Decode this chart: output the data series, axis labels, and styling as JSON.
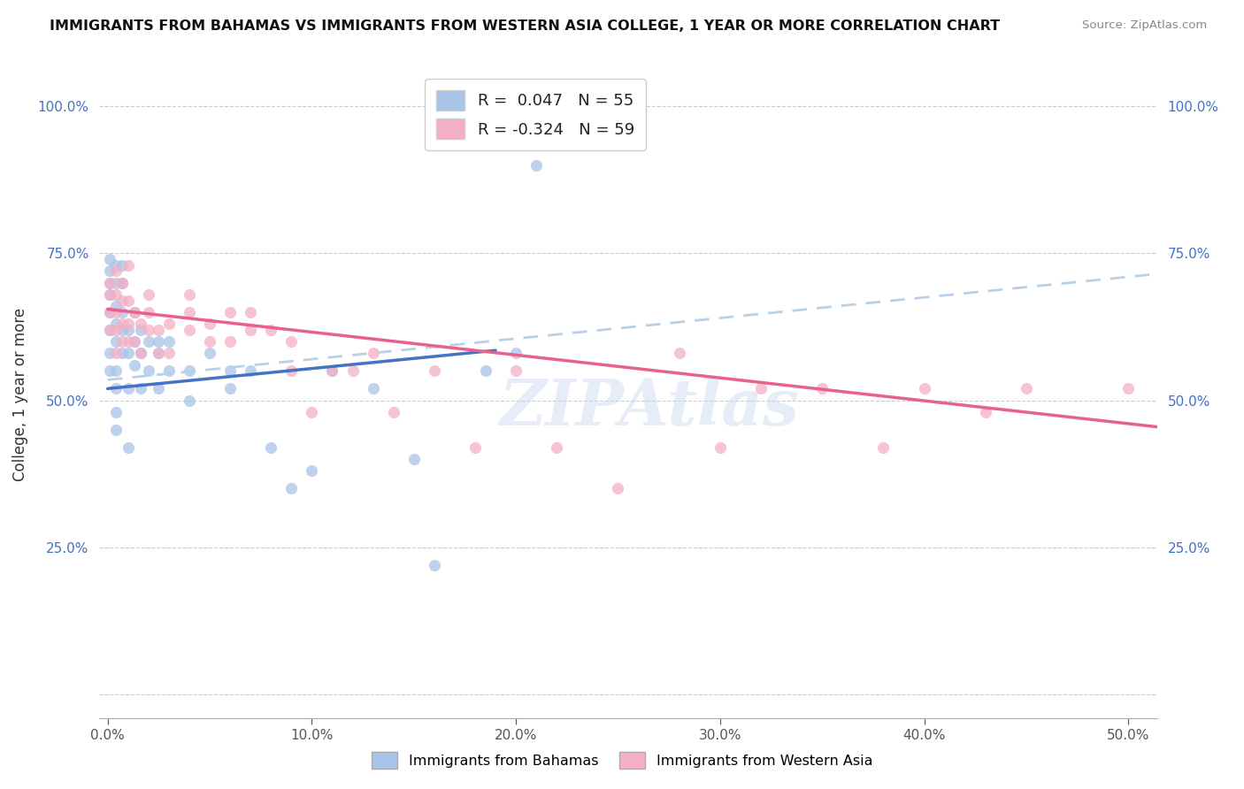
{
  "title": "IMMIGRANTS FROM BAHAMAS VS IMMIGRANTS FROM WESTERN ASIA COLLEGE, 1 YEAR OR MORE CORRELATION CHART",
  "source": "Source: ZipAtlas.com",
  "ylabel": "College, 1 year or more",
  "R_bahamas": 0.047,
  "N_bahamas": 55,
  "R_western_asia": -0.324,
  "N_western_asia": 59,
  "color_bahamas": "#a8c4e8",
  "color_western_asia": "#f4afc4",
  "trendline_bahamas_solid_color": "#4472c4",
  "trendline_bahamas_dashed_color": "#b8d0e8",
  "trendline_western_asia_color": "#e8608c",
  "legend_label_bahamas": "Immigrants from Bahamas",
  "legend_label_western_asia": "Immigrants from Western Asia",
  "watermark": "ZIPAtlas",
  "xlim": [
    -0.004,
    0.514
  ],
  "ylim": [
    -0.04,
    1.06
  ],
  "x_ticks": [
    0.0,
    0.1,
    0.2,
    0.3,
    0.4,
    0.5
  ],
  "y_ticks": [
    0.0,
    0.25,
    0.5,
    0.75,
    1.0
  ],
  "bah_trend_x0": 0.0,
  "bah_trend_y0": 0.52,
  "bah_trend_x1": 0.19,
  "bah_trend_y1": 0.585,
  "dashed_trend_x0": 0.0,
  "dashed_trend_y0": 0.535,
  "dashed_trend_x1": 0.514,
  "dashed_trend_y1": 0.715,
  "wa_trend_x0": 0.0,
  "wa_trend_y0": 0.655,
  "wa_trend_x1": 0.514,
  "wa_trend_y1": 0.455,
  "bah_x": [
    0.001,
    0.001,
    0.001,
    0.001,
    0.001,
    0.001,
    0.001,
    0.001,
    0.004,
    0.004,
    0.004,
    0.004,
    0.004,
    0.004,
    0.004,
    0.004,
    0.004,
    0.007,
    0.007,
    0.007,
    0.007,
    0.007,
    0.01,
    0.01,
    0.01,
    0.01,
    0.013,
    0.013,
    0.013,
    0.016,
    0.016,
    0.016,
    0.02,
    0.02,
    0.025,
    0.025,
    0.025,
    0.03,
    0.03,
    0.04,
    0.04,
    0.05,
    0.06,
    0.06,
    0.07,
    0.08,
    0.09,
    0.1,
    0.11,
    0.13,
    0.15,
    0.16,
    0.185,
    0.2,
    0.21
  ],
  "bah_y": [
    0.62,
    0.65,
    0.68,
    0.7,
    0.72,
    0.74,
    0.58,
    0.55,
    0.52,
    0.55,
    0.6,
    0.63,
    0.66,
    0.7,
    0.73,
    0.48,
    0.45,
    0.58,
    0.62,
    0.65,
    0.7,
    0.73,
    0.52,
    0.58,
    0.62,
    0.42,
    0.56,
    0.6,
    0.65,
    0.52,
    0.58,
    0.62,
    0.55,
    0.6,
    0.52,
    0.58,
    0.6,
    0.55,
    0.6,
    0.5,
    0.55,
    0.58,
    0.55,
    0.52,
    0.55,
    0.42,
    0.35,
    0.38,
    0.55,
    0.52,
    0.4,
    0.22,
    0.55,
    0.58,
    0.9
  ],
  "wa_x": [
    0.001,
    0.001,
    0.001,
    0.001,
    0.004,
    0.004,
    0.004,
    0.004,
    0.004,
    0.007,
    0.007,
    0.007,
    0.007,
    0.01,
    0.01,
    0.01,
    0.01,
    0.013,
    0.013,
    0.016,
    0.016,
    0.02,
    0.02,
    0.02,
    0.025,
    0.025,
    0.03,
    0.03,
    0.04,
    0.04,
    0.04,
    0.05,
    0.05,
    0.06,
    0.06,
    0.07,
    0.07,
    0.08,
    0.09,
    0.09,
    0.1,
    0.11,
    0.12,
    0.13,
    0.14,
    0.16,
    0.18,
    0.2,
    0.22,
    0.25,
    0.28,
    0.3,
    0.32,
    0.35,
    0.38,
    0.4,
    0.43,
    0.45,
    0.5
  ],
  "wa_y": [
    0.62,
    0.65,
    0.68,
    0.7,
    0.58,
    0.62,
    0.65,
    0.68,
    0.72,
    0.6,
    0.63,
    0.67,
    0.7,
    0.6,
    0.63,
    0.67,
    0.73,
    0.6,
    0.65,
    0.58,
    0.63,
    0.62,
    0.65,
    0.68,
    0.58,
    0.62,
    0.58,
    0.63,
    0.62,
    0.65,
    0.68,
    0.6,
    0.63,
    0.6,
    0.65,
    0.62,
    0.65,
    0.62,
    0.55,
    0.6,
    0.48,
    0.55,
    0.55,
    0.58,
    0.48,
    0.55,
    0.42,
    0.55,
    0.42,
    0.35,
    0.58,
    0.42,
    0.52,
    0.52,
    0.42,
    0.52,
    0.48,
    0.52,
    0.52
  ]
}
